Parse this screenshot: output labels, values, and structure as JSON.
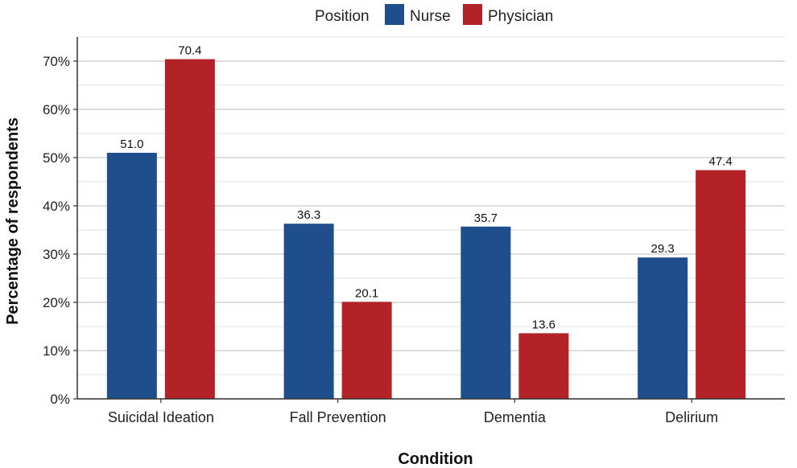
{
  "chart_data": {
    "type": "bar",
    "title": "",
    "xlabel": "Condition",
    "ylabel": "Percentage of respondents",
    "categories": [
      "Suicidal Ideation",
      "Fall Prevention",
      "Dementia",
      "Delirium"
    ],
    "series": [
      {
        "name": "Nurse",
        "color": "#1f4e8c",
        "values": [
          51.0,
          36.3,
          35.7,
          29.3
        ],
        "labels": [
          "51.0",
          "36.3",
          "35.7",
          "29.3"
        ]
      },
      {
        "name": "Physician",
        "color": "#b22226",
        "values": [
          70.4,
          20.1,
          13.6,
          47.4
        ],
        "labels": [
          "70.4",
          "20.1",
          "13.6",
          "47.4"
        ]
      }
    ],
    "ylim": [
      0,
      75
    ],
    "yticks": [
      0,
      10,
      20,
      30,
      40,
      50,
      60,
      70
    ],
    "ytick_labels": [
      "0%",
      "10%",
      "20%",
      "30%",
      "40%",
      "50%",
      "60%",
      "70%"
    ],
    "grid": true,
    "legend": {
      "title": "Position",
      "position": "top"
    }
  }
}
